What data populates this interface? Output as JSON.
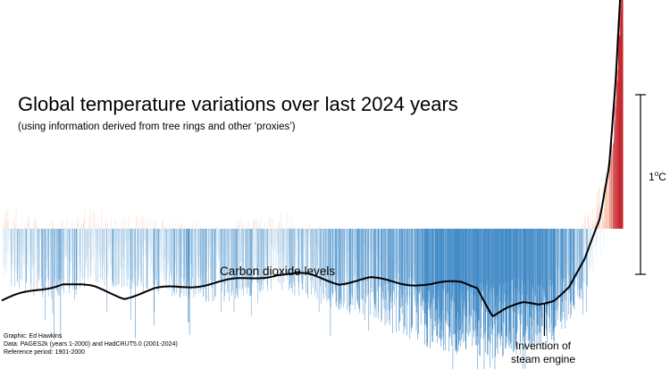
{
  "title": "Global temperature variations over last 2024 years",
  "subtitle": "(using information derived from tree rings and other ‘proxies’)",
  "credits": [
    "Graphic: Ed Hawkins",
    "Data: PAGES2k (years 1-2000) and HadCRUT5.0 (2001-2024)",
    "Reference period: 1901-2000"
  ],
  "scale_bar": {
    "value": "1",
    "unit_symbol": "o",
    "unit": "C"
  },
  "colors": {
    "warm": "#c0141c",
    "warm_light": "#f4a582",
    "cool": "#2f7fc1",
    "cool_light": "#a9cde8",
    "line": "#000000"
  },
  "chart_data": {
    "type": "bar",
    "x_range": [
      1,
      2024
    ],
    "y_unit": "°C relative to 1901-2000",
    "y_range": [
      -0.85,
      1.7
    ],
    "anomaly_keyframes": [
      {
        "year": 1,
        "value": -0.08
      },
      {
        "year": 150,
        "value": -0.18
      },
      {
        "year": 300,
        "value": -0.1
      },
      {
        "year": 500,
        "value": -0.14
      },
      {
        "year": 700,
        "value": -0.2
      },
      {
        "year": 900,
        "value": -0.12
      },
      {
        "year": 1000,
        "value": -0.18
      },
      {
        "year": 1200,
        "value": -0.3
      },
      {
        "year": 1400,
        "value": -0.45
      },
      {
        "year": 1600,
        "value": -0.52
      },
      {
        "year": 1700,
        "value": -0.48
      },
      {
        "year": 1800,
        "value": -0.42
      },
      {
        "year": 1850,
        "value": -0.3
      },
      {
        "year": 1900,
        "value": -0.15
      },
      {
        "year": 1950,
        "value": 0.05
      },
      {
        "year": 1980,
        "value": 0.3
      },
      {
        "year": 2000,
        "value": 0.7
      },
      {
        "year": 2024,
        "value": 1.45
      }
    ],
    "co2_line": {
      "label": "Carbon dioxide levels",
      "points": [
        {
          "year": 1,
          "value": -0.4
        },
        {
          "year": 100,
          "value": -0.35
        },
        {
          "year": 200,
          "value": -0.3
        },
        {
          "year": 300,
          "value": -0.33
        },
        {
          "year": 400,
          "value": -0.38
        },
        {
          "year": 500,
          "value": -0.34
        },
        {
          "year": 600,
          "value": -0.32
        },
        {
          "year": 700,
          "value": -0.3
        },
        {
          "year": 800,
          "value": -0.28
        },
        {
          "year": 900,
          "value": -0.25
        },
        {
          "year": 1000,
          "value": -0.26
        },
        {
          "year": 1100,
          "value": -0.3
        },
        {
          "year": 1200,
          "value": -0.28
        },
        {
          "year": 1300,
          "value": -0.3
        },
        {
          "year": 1400,
          "value": -0.31
        },
        {
          "year": 1500,
          "value": -0.3
        },
        {
          "year": 1550,
          "value": -0.32
        },
        {
          "year": 1600,
          "value": -0.48
        },
        {
          "year": 1640,
          "value": -0.45
        },
        {
          "year": 1700,
          "value": -0.42
        },
        {
          "year": 1750,
          "value": -0.42
        },
        {
          "year": 1800,
          "value": -0.39
        },
        {
          "year": 1850,
          "value": -0.32
        },
        {
          "year": 1900,
          "value": -0.18
        },
        {
          "year": 1950,
          "value": 0.05
        },
        {
          "year": 1980,
          "value": 0.35
        },
        {
          "year": 2000,
          "value": 0.8
        },
        {
          "year": 2024,
          "value": 1.55
        }
      ]
    },
    "annotations": [
      {
        "year": 1769,
        "text": [
          "Invention of",
          "steam engine"
        ]
      }
    ]
  }
}
